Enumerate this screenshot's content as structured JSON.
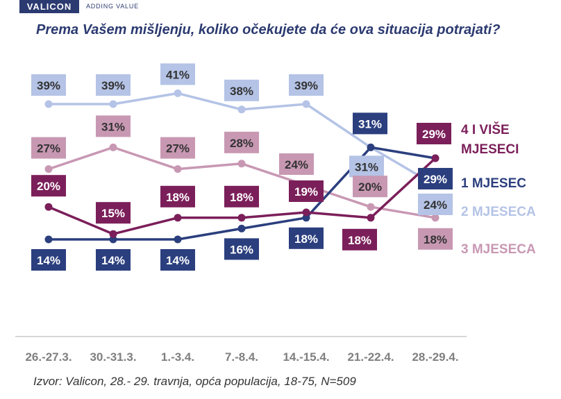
{
  "header": {
    "logo": "VALICON",
    "tagline": "ADDING VALUE"
  },
  "title": "Prema Vašem mišljenju, koliko očekujete da će ova situacija potrajati?",
  "source": "Izvor: Valicon, 28.- 29. travnja, opća populacija, 18-75, N=509",
  "chart_data": {
    "type": "line",
    "title": "Prema Vašem mišljenju, koliko očekujete da će ova situacija potrajati?",
    "categories": [
      "26.-27.3.",
      "30.-31.3.",
      "1.-3.4.",
      "7.-8.4.",
      "14.-15.4.",
      "21.-22.4.",
      "28.-29.4."
    ],
    "series": [
      {
        "name": "4 I VIŠE MJESECI",
        "name_lines": [
          "4 I VIŠE",
          "MJESECI"
        ],
        "color": "#7b1f5a",
        "values": [
          20,
          15,
          18,
          18,
          19,
          18,
          29
        ]
      },
      {
        "name": "1 MJESEC",
        "name_lines": [
          "1 MJESEC"
        ],
        "color": "#2b3f7e",
        "values": [
          14,
          14,
          14,
          16,
          18,
          31,
          29
        ]
      },
      {
        "name": "2 MJESECA",
        "name_lines": [
          "2 MJESECA"
        ],
        "color": "#b4c3e6",
        "values": [
          39,
          39,
          41,
          38,
          39,
          31,
          24
        ]
      },
      {
        "name": "3 MJESECA",
        "name_lines": [
          "3 MJESECA"
        ],
        "color": "#c898b3",
        "values": [
          27,
          31,
          27,
          28,
          24,
          20,
          18
        ]
      }
    ],
    "value_suffix": "%",
    "legend": "right",
    "grid": false
  }
}
